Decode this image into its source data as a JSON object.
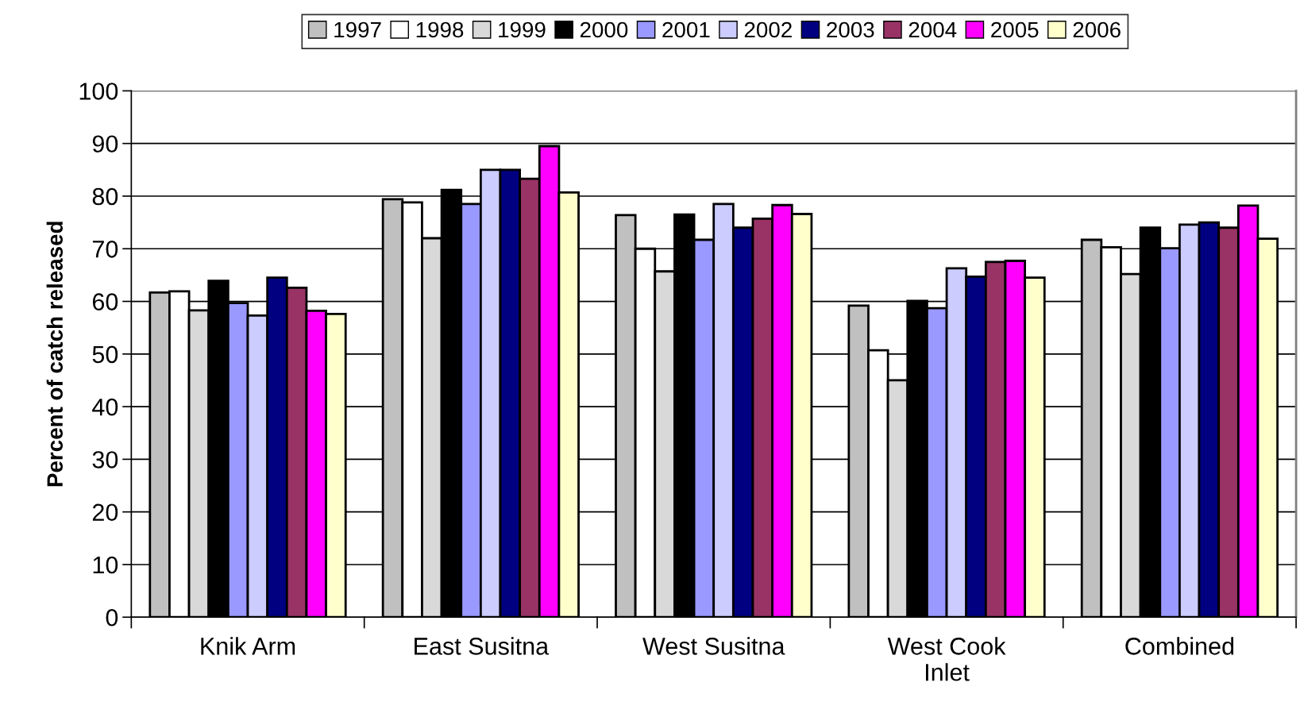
{
  "chart_data": {
    "type": "bar",
    "ylabel": "Percent of catch released",
    "categories": [
      "Knik Arm",
      "East Susitna",
      "West Susitna",
      "West Cook\nInlet",
      "Combined"
    ],
    "series": [
      {
        "name": "1997",
        "color": "#c0c0c0",
        "values": [
          61.7,
          79.4,
          76.4,
          59.2,
          71.7
        ]
      },
      {
        "name": "1998",
        "color": "#ffffff",
        "values": [
          61.9,
          78.8,
          70.0,
          50.7,
          70.3
        ]
      },
      {
        "name": "1999",
        "color": "#d9d9d9",
        "values": [
          58.3,
          72.0,
          65.7,
          45.0,
          65.2
        ]
      },
      {
        "name": "2000",
        "color": "#000000",
        "values": [
          63.9,
          81.2,
          76.5,
          60.1,
          74.0
        ]
      },
      {
        "name": "2001",
        "color": "#9999ff",
        "values": [
          59.7,
          78.5,
          71.7,
          58.7,
          70.1
        ]
      },
      {
        "name": "2002",
        "color": "#ccccff",
        "values": [
          57.3,
          85.0,
          78.5,
          66.3,
          74.6
        ]
      },
      {
        "name": "2003",
        "color": "#000080",
        "values": [
          64.5,
          85.0,
          74.0,
          64.7,
          75.0
        ]
      },
      {
        "name": "2004",
        "color": "#993366",
        "values": [
          62.6,
          83.3,
          75.7,
          67.5,
          74.0
        ]
      },
      {
        "name": "2005",
        "color": "#ff00ff",
        "values": [
          58.2,
          89.5,
          78.3,
          67.7,
          78.2
        ]
      },
      {
        "name": "2006",
        "color": "#ffffcc",
        "values": [
          57.6,
          80.7,
          76.6,
          64.5,
          71.9
        ]
      }
    ],
    "ylim": [
      0,
      100
    ],
    "yticks": [
      0,
      10,
      20,
      30,
      40,
      50,
      60,
      70,
      80,
      90,
      100
    ],
    "grid": "y",
    "legend": "top"
  }
}
